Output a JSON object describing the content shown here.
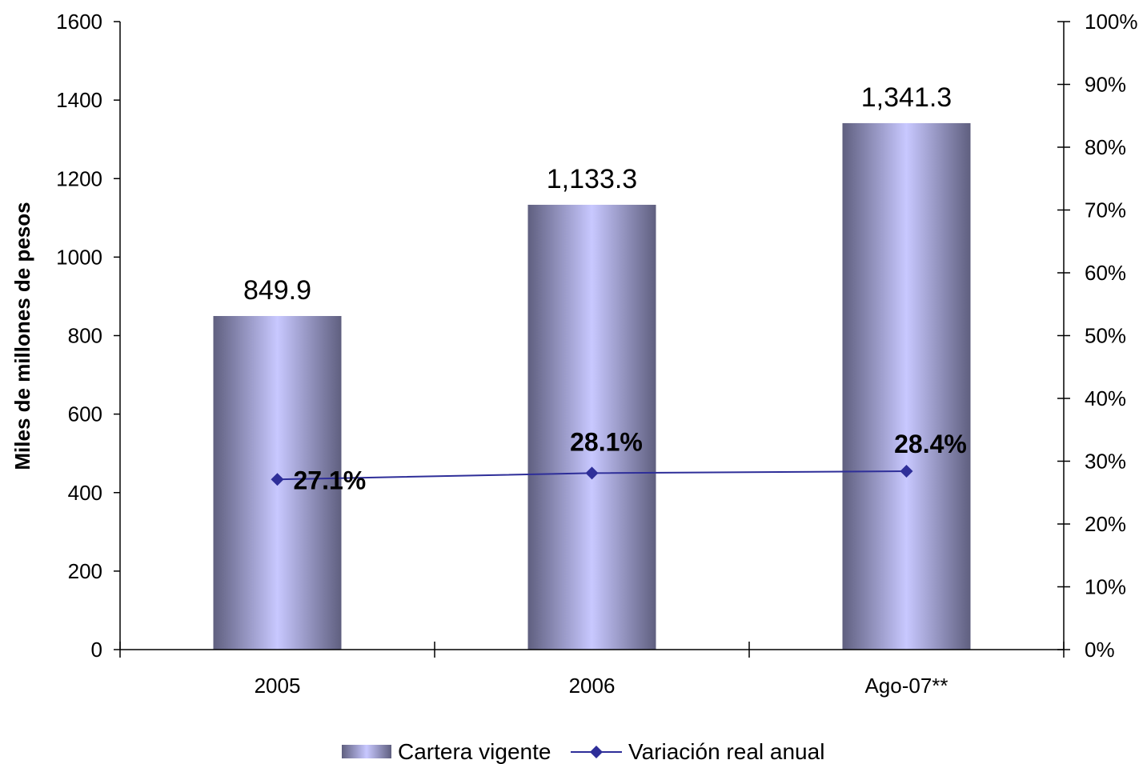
{
  "chart_data": {
    "type": "bar",
    "categories": [
      "2005",
      "2006",
      "Ago-07**"
    ],
    "series": [
      {
        "name": "Cartera vigente",
        "type": "bar",
        "axis": "left",
        "values": [
          849.9,
          1133.3,
          1341.3
        ],
        "labels": [
          "849.9",
          "1,133.3",
          "1,341.3"
        ]
      },
      {
        "name": "Variación real anual",
        "type": "line",
        "axis": "right",
        "values": [
          27.1,
          28.1,
          28.4
        ],
        "labels": [
          "27.1%",
          "28.1%",
          "28.4%"
        ]
      }
    ],
    "ylabel": "Miles de millones de pesos",
    "ylim": [
      0,
      1600
    ],
    "y_ticks": [
      "0",
      "200",
      "400",
      "600",
      "800",
      "1000",
      "1200",
      "1400",
      "1600"
    ],
    "y2lim": [
      0,
      100
    ],
    "y2_ticks": [
      "0%",
      "10%",
      "20%",
      "30%",
      "40%",
      "50%",
      "60%",
      "70%",
      "80%",
      "90%",
      "100%"
    ],
    "legend_position": "bottom",
    "grid": false,
    "colors": {
      "bar_edge": "#5f5f7f",
      "bar_center": "#c8c8ff",
      "line": "#2e2e99",
      "axis": "#000000"
    }
  }
}
